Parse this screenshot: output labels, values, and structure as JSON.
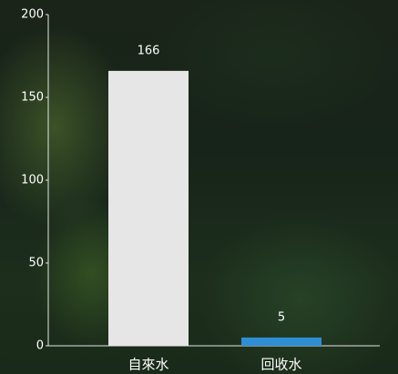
{
  "chart_data": {
    "type": "bar",
    "categories": [
      "自來水",
      "回收水"
    ],
    "values": [
      166,
      5
    ],
    "colors": [
      "#e6e6e6",
      "#2e8fd4"
    ],
    "ylim": [
      0,
      200
    ],
    "yticks": [
      0,
      50,
      100,
      150,
      200
    ]
  }
}
